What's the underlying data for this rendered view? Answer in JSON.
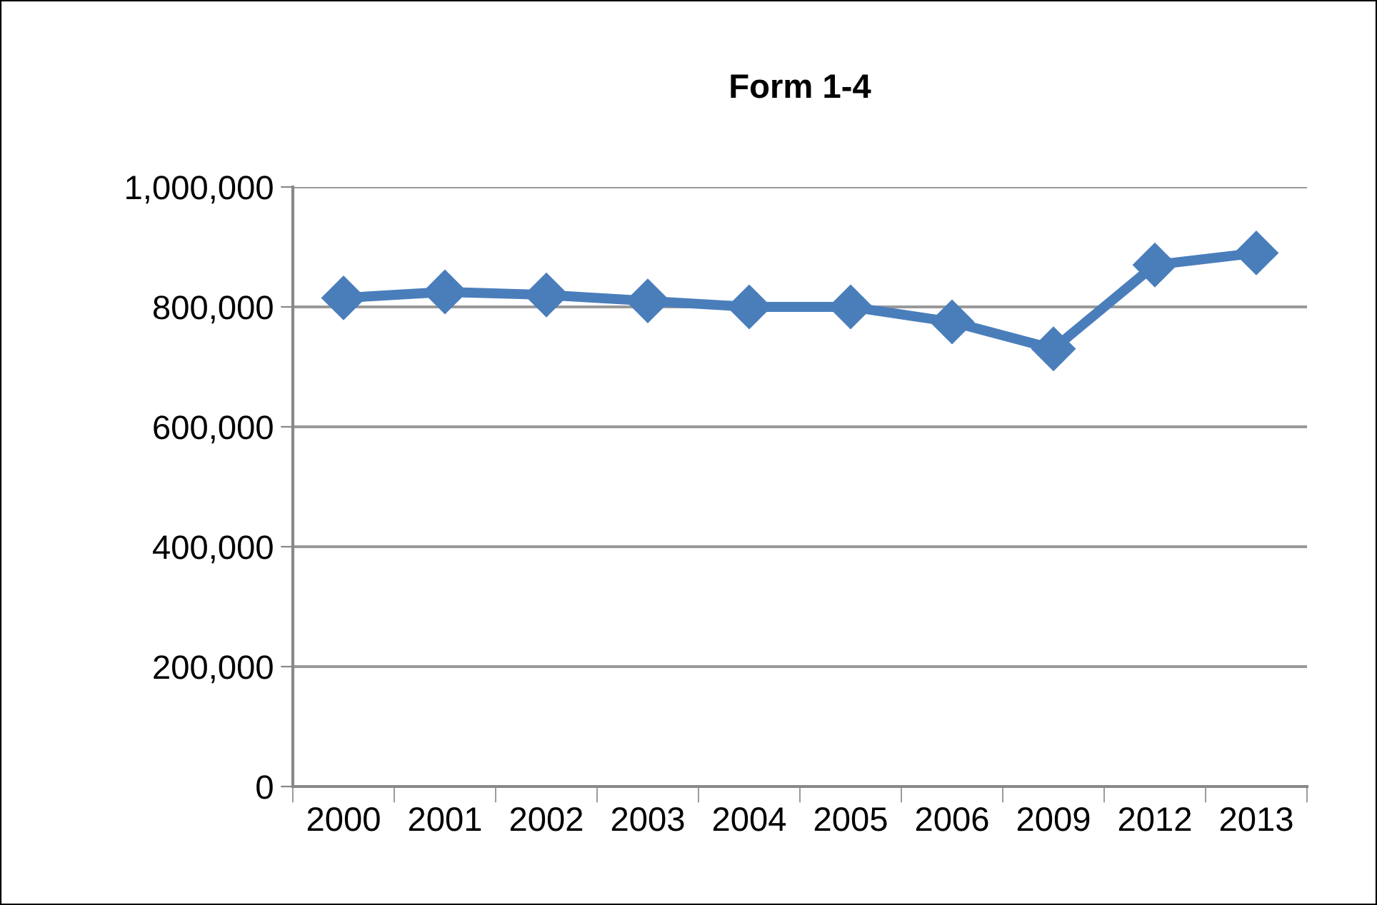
{
  "chart_data": {
    "type": "line",
    "title": "Form 1-4",
    "categories": [
      "2000",
      "2001",
      "2002",
      "2003",
      "2004",
      "2005",
      "2006",
      "2009",
      "2012",
      "2013"
    ],
    "series": [
      {
        "color": "#4a7ebb",
        "values": [
          815000,
          825000,
          820000,
          810000,
          800000,
          800000,
          775000,
          730000,
          870000,
          890000
        ]
      }
    ],
    "ylim": [
      0,
      1000000
    ],
    "yticks": [
      {
        "value": 0,
        "label": "0"
      },
      {
        "value": 200000,
        "label": "200,000"
      },
      {
        "value": 400000,
        "label": "400,000"
      },
      {
        "value": 600000,
        "label": "600,000"
      },
      {
        "value": 800000,
        "label": "800,000"
      },
      {
        "value": 1000000,
        "label": "1,000,000"
      }
    ],
    "grid": "y",
    "marker": "diamond",
    "line_style": "solid",
    "legend": false
  }
}
